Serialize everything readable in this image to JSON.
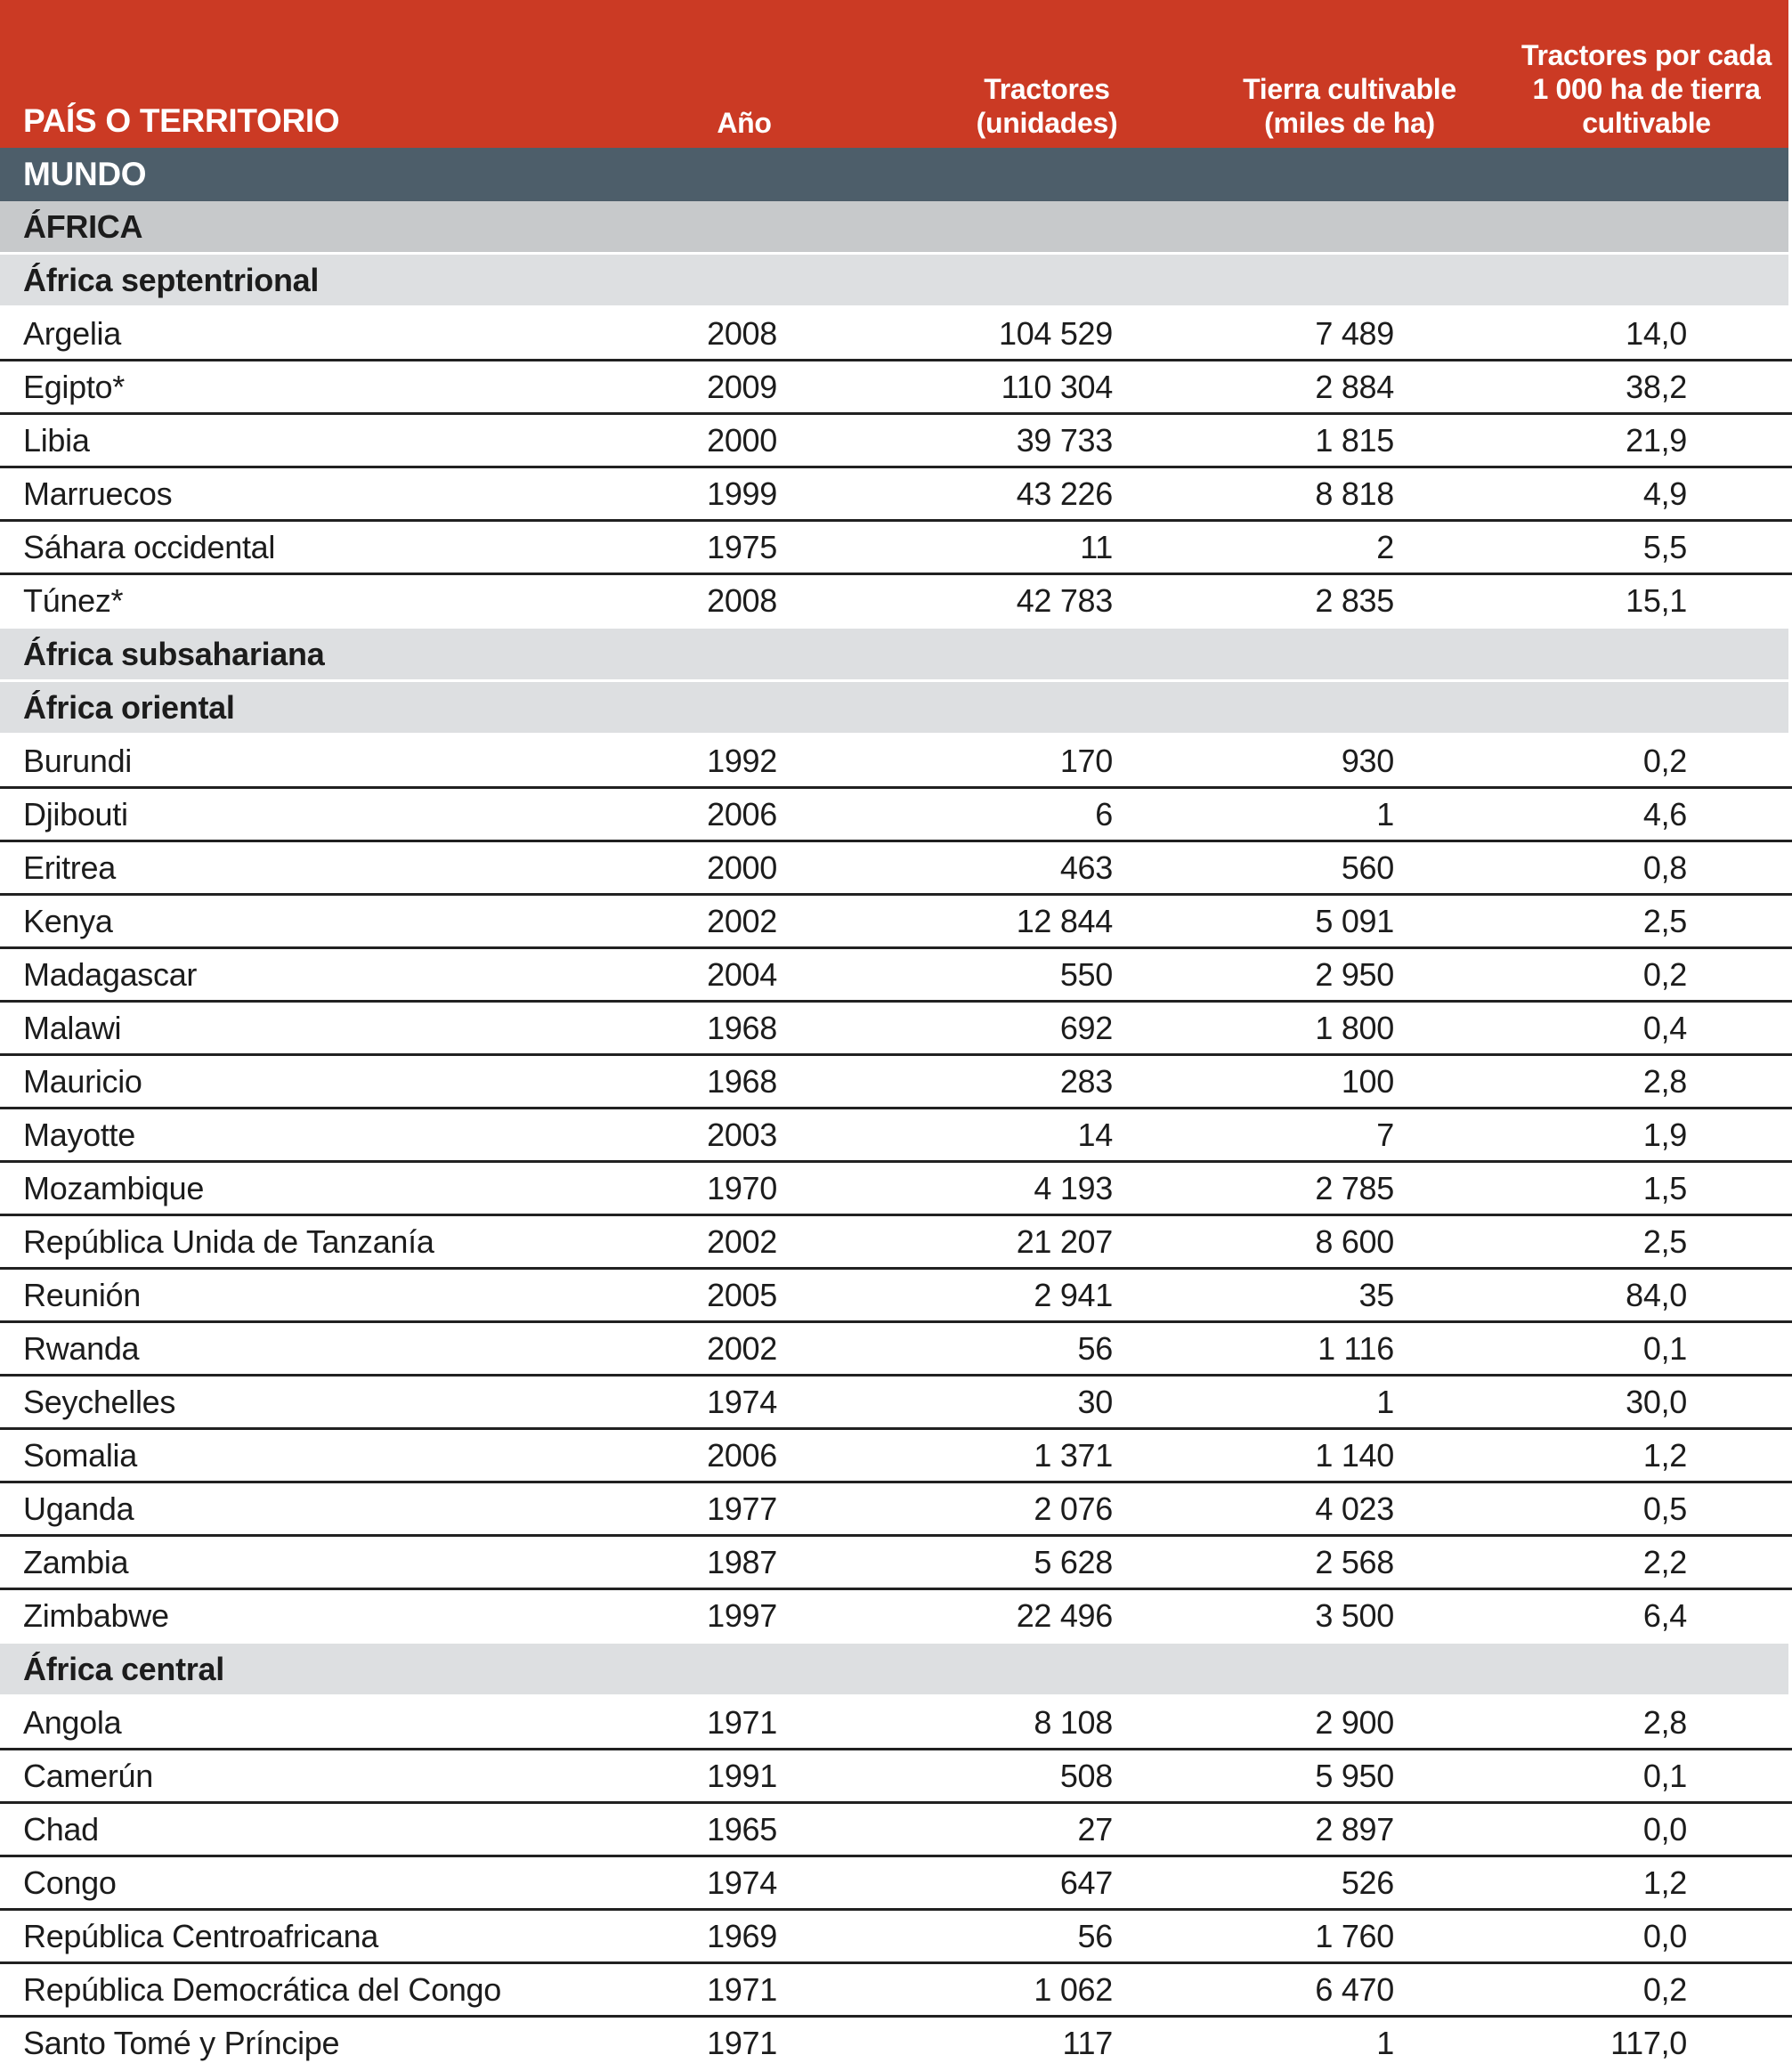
{
  "colors": {
    "header-bg": "#CB3A24",
    "header-text": "#FFFFFF",
    "world-bg": "#4D5E6A",
    "region-bg": "#C7C9CB",
    "subregion-bg": "#DDDFE1",
    "row-border": "#212121",
    "text": "#1C1C1C"
  },
  "table": {
    "headers": [
      {
        "id": "country",
        "lines": [
          "PAÍS O TERRITORIO"
        ]
      },
      {
        "id": "year",
        "lines": [
          "Año"
        ]
      },
      {
        "id": "tractors",
        "lines": [
          "Tractores",
          "(unidades)"
        ]
      },
      {
        "id": "arable",
        "lines": [
          "Tierra cultivable",
          "(miles de ha)"
        ]
      },
      {
        "id": "ratio",
        "lines": [
          "Tractores por cada",
          "1 000 ha de tierra",
          "cultivable"
        ]
      }
    ],
    "rows": [
      {
        "type": "world",
        "name": "MUNDO"
      },
      {
        "type": "region",
        "name": "ÁFRICA"
      },
      {
        "type": "subregion",
        "name": "África septentrional"
      },
      {
        "type": "data",
        "name": "Argelia",
        "year": "2008",
        "tractors": "104 529",
        "arable": "7 489",
        "ratio": "14,0"
      },
      {
        "type": "data",
        "name": "Egipto*",
        "year": "2009",
        "tractors": "110 304",
        "arable": "2 884",
        "ratio": "38,2"
      },
      {
        "type": "data",
        "name": "Libia",
        "year": "2000",
        "tractors": "39 733",
        "arable": "1 815",
        "ratio": "21,9"
      },
      {
        "type": "data",
        "name": "Marruecos",
        "year": "1999",
        "tractors": "43 226",
        "arable": "8 818",
        "ratio": "4,9"
      },
      {
        "type": "data",
        "name": "Sáhara occidental",
        "year": "1975",
        "tractors": "11",
        "arable": "2",
        "ratio": "5,5"
      },
      {
        "type": "data",
        "name": "Túnez*",
        "year": "2008",
        "tractors": "42 783",
        "arable": "2 835",
        "ratio": "15,1"
      },
      {
        "type": "subregion",
        "name": "África subsahariana"
      },
      {
        "type": "subregion",
        "name": "África oriental"
      },
      {
        "type": "data",
        "name": "Burundi",
        "year": "1992",
        "tractors": "170",
        "arable": "930",
        "ratio": "0,2"
      },
      {
        "type": "data",
        "name": "Djibouti",
        "year": "2006",
        "tractors": "6",
        "arable": "1",
        "ratio": "4,6"
      },
      {
        "type": "data",
        "name": "Eritrea",
        "year": "2000",
        "tractors": "463",
        "arable": "560",
        "ratio": "0,8"
      },
      {
        "type": "data",
        "name": "Kenya",
        "year": "2002",
        "tractors": "12 844",
        "arable": "5 091",
        "ratio": "2,5"
      },
      {
        "type": "data",
        "name": "Madagascar",
        "year": "2004",
        "tractors": "550",
        "arable": "2 950",
        "ratio": "0,2"
      },
      {
        "type": "data",
        "name": "Malawi",
        "year": "1968",
        "tractors": "692",
        "arable": "1 800",
        "ratio": "0,4"
      },
      {
        "type": "data",
        "name": "Mauricio",
        "year": "1968",
        "tractors": "283",
        "arable": "100",
        "ratio": "2,8"
      },
      {
        "type": "data",
        "name": "Mayotte",
        "year": "2003",
        "tractors": "14",
        "arable": "7",
        "ratio": "1,9"
      },
      {
        "type": "data",
        "name": "Mozambique",
        "year": "1970",
        "tractors": "4 193",
        "arable": "2 785",
        "ratio": "1,5"
      },
      {
        "type": "data",
        "name": "República Unida de Tanzanía",
        "year": "2002",
        "tractors": "21 207",
        "arable": "8 600",
        "ratio": "2,5"
      },
      {
        "type": "data",
        "name": "Reunión",
        "year": "2005",
        "tractors": "2 941",
        "arable": "35",
        "ratio": "84,0"
      },
      {
        "type": "data",
        "name": "Rwanda",
        "year": "2002",
        "tractors": "56",
        "arable": "1 116",
        "ratio": "0,1"
      },
      {
        "type": "data",
        "name": "Seychelles",
        "year": "1974",
        "tractors": "30",
        "arable": "1",
        "ratio": "30,0"
      },
      {
        "type": "data",
        "name": "Somalia",
        "year": "2006",
        "tractors": "1 371",
        "arable": "1 140",
        "ratio": "1,2"
      },
      {
        "type": "data",
        "name": "Uganda",
        "year": "1977",
        "tractors": "2 076",
        "arable": "4 023",
        "ratio": "0,5"
      },
      {
        "type": "data",
        "name": "Zambia",
        "year": "1987",
        "tractors": "5 628",
        "arable": "2 568",
        "ratio": "2,2"
      },
      {
        "type": "data",
        "name": "Zimbabwe",
        "year": "1997",
        "tractors": "22 496",
        "arable": "3 500",
        "ratio": "6,4"
      },
      {
        "type": "subregion",
        "name": "África central"
      },
      {
        "type": "data",
        "name": "Angola",
        "year": "1971",
        "tractors": "8 108",
        "arable": "2 900",
        "ratio": "2,8"
      },
      {
        "type": "data",
        "name": "Camerún",
        "year": "1991",
        "tractors": "508",
        "arable": "5 950",
        "ratio": "0,1"
      },
      {
        "type": "data",
        "name": "Chad",
        "year": "1965",
        "tractors": "27",
        "arable": "2 897",
        "ratio": "0,0"
      },
      {
        "type": "data",
        "name": "Congo",
        "year": "1974",
        "tractors": "647",
        "arable": "526",
        "ratio": "1,2"
      },
      {
        "type": "data",
        "name": "República Centroafricana",
        "year": "1969",
        "tractors": "56",
        "arable": "1 760",
        "ratio": "0,0"
      },
      {
        "type": "data",
        "name": "República Democrática del Congo",
        "year": "1971",
        "tractors": "1 062",
        "arable": "6 470",
        "ratio": "0,2"
      },
      {
        "type": "data",
        "name": "Santo Tomé y Príncipe",
        "year": "1971",
        "tractors": "117",
        "arable": "1",
        "ratio": "117,0"
      }
    ]
  }
}
